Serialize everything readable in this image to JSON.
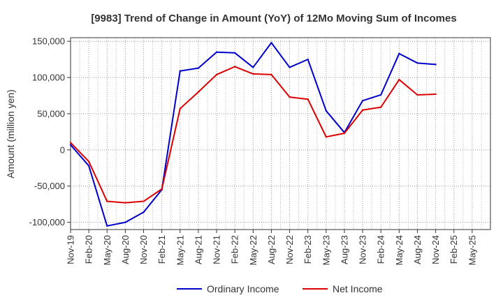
{
  "chart_data": {
    "type": "line",
    "title": "[9983]  Trend of Change in Amount (YoY) of 12Mo Moving Sum of Incomes",
    "xlabel": "",
    "ylabel": "Amount (million yen)",
    "ylim": [
      -110000,
      155000
    ],
    "yticks": [
      150000,
      100000,
      50000,
      0,
      -50000,
      -100000
    ],
    "ytick_labels": [
      "150,000",
      "100,000",
      "50,000",
      "0",
      "-50,000",
      "-100,000"
    ],
    "categories": [
      "Nov-19",
      "Feb-20",
      "May-20",
      "Aug-20",
      "Nov-20",
      "Feb-21",
      "May-21",
      "Aug-21",
      "Nov-21",
      "Feb-22",
      "May-22",
      "Aug-22",
      "Nov-22",
      "Feb-23",
      "May-23",
      "Aug-23",
      "Nov-23",
      "Feb-24",
      "May-24",
      "Aug-24",
      "Nov-24",
      "Feb-25",
      "May-25"
    ],
    "grid": true,
    "legend_position": "bottom",
    "series": [
      {
        "name": "Ordinary Income",
        "color": "#0000cc",
        "values": [
          7000,
          -22000,
          -105000,
          -100000,
          -86000,
          -55000,
          109000,
          113000,
          135000,
          134000,
          114000,
          148000,
          114000,
          125000,
          54000,
          24000,
          68000,
          76000,
          133000,
          120000,
          118000,
          null,
          null
        ]
      },
      {
        "name": "Net Income",
        "color": "#dd0000",
        "values": [
          10000,
          -16000,
          -71000,
          -73000,
          -71000,
          -54000,
          57000,
          80000,
          104000,
          115000,
          105000,
          104000,
          73000,
          70000,
          18000,
          23000,
          55000,
          59000,
          97000,
          76000,
          77000,
          null,
          null
        ]
      }
    ]
  }
}
